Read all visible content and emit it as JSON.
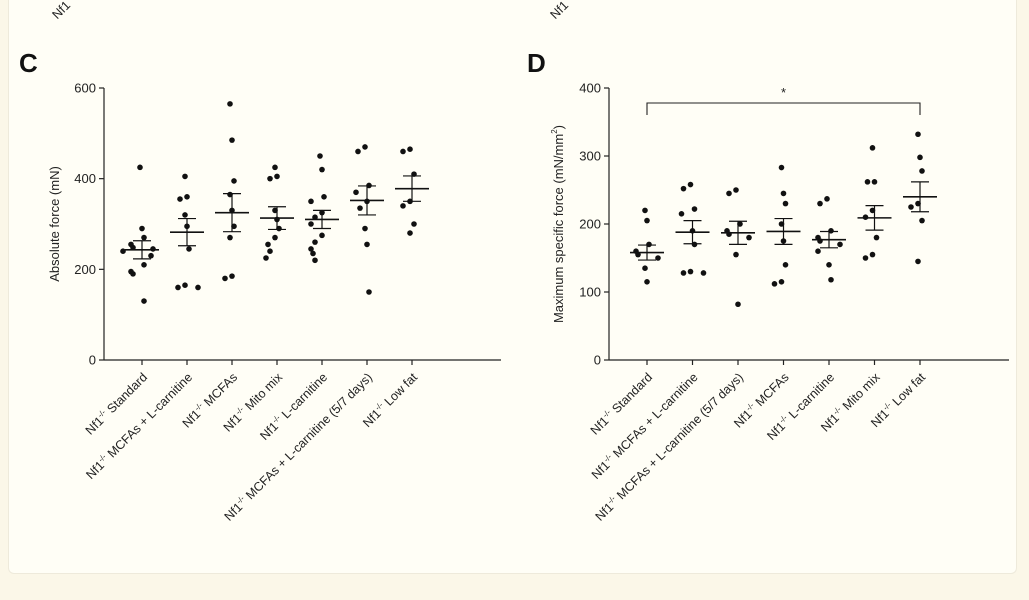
{
  "top_fragments": [
    "Nf1",
    "Nf1"
  ],
  "chart_data": [
    {
      "type": "scatter",
      "panel": "C",
      "ylabel": "Absolute force (mN)",
      "ylim": [
        0,
        600
      ],
      "yticks": [
        0,
        200,
        400,
        600
      ],
      "categories": [
        {
          "prefix": "Nf1",
          "sup": "-/-",
          "suffix": " Standard"
        },
        {
          "prefix": "Nf1",
          "sup": "-/-",
          "suffix": " MCFAs + L-carnitine"
        },
        {
          "prefix": "Nf1",
          "sup": "-/-",
          "suffix": " MCFAs"
        },
        {
          "prefix": "Nf1",
          "sup": "-/-",
          "suffix": " Mito mix"
        },
        {
          "prefix": "Nf1",
          "sup": "-/-",
          "suffix": " L-carnitine"
        },
        {
          "prefix": "Nf1",
          "sup": "-/-",
          "suffix": " MCFAs + L-carnitine (5/7 days)"
        },
        {
          "prefix": "Nf1",
          "sup": "-/-",
          "suffix": " Low fat"
        }
      ],
      "groups": [
        {
          "points": [
            425,
            290,
            270,
            255,
            248,
            245,
            240,
            230,
            210,
            195,
            190,
            130
          ],
          "mean": 243,
          "sem": 20
        },
        {
          "points": [
            405,
            360,
            355,
            320,
            295,
            245,
            165,
            160,
            160
          ],
          "mean": 282,
          "sem": 30
        },
        {
          "points": [
            565,
            485,
            395,
            365,
            330,
            295,
            270,
            185,
            180
          ],
          "mean": 325,
          "sem": 42
        },
        {
          "points": [
            425,
            405,
            400,
            330,
            310,
            290,
            270,
            255,
            240,
            225
          ],
          "mean": 313,
          "sem": 25
        },
        {
          "points": [
            450,
            420,
            360,
            350,
            325,
            315,
            300,
            275,
            260,
            245,
            235,
            220
          ],
          "mean": 310,
          "sem": 20
        },
        {
          "points": [
            470,
            460,
            385,
            370,
            350,
            335,
            290,
            255,
            150
          ],
          "mean": 352,
          "sem": 32
        },
        {
          "points": [
            465,
            460,
            410,
            350,
            340,
            300,
            280
          ],
          "mean": 378,
          "sem": 28
        }
      ]
    },
    {
      "type": "scatter",
      "panel": "D",
      "ylabel": "Maximum specific force (mN/mm",
      "ylabel_sup": "2",
      "ylabel_end": ")",
      "ylim": [
        0,
        400
      ],
      "yticks": [
        0,
        100,
        200,
        300,
        400
      ],
      "significance": "*",
      "categories": [
        {
          "prefix": "Nf1",
          "sup": "-/-",
          "suffix": " Standard"
        },
        {
          "prefix": "Nf1",
          "sup": "-/-",
          "suffix": " MCFAs + L-carnitine"
        },
        {
          "prefix": "Nf1",
          "sup": "-/-",
          "suffix": " MCFAs + L-carnitine (5/7 days)"
        },
        {
          "prefix": "Nf1",
          "sup": "-/-",
          "suffix": " MCFAs"
        },
        {
          "prefix": "Nf1",
          "sup": "-/-",
          "suffix": " L-carnitine"
        },
        {
          "prefix": "Nf1",
          "sup": "-/-",
          "suffix": " Mito mix"
        },
        {
          "prefix": "Nf1",
          "sup": "-/-",
          "suffix": " Low fat"
        }
      ],
      "groups": [
        {
          "points": [
            220,
            205,
            170,
            160,
            155,
            150,
            135,
            115
          ],
          "mean": 158,
          "sem": 11
        },
        {
          "points": [
            258,
            252,
            222,
            215,
            190,
            170,
            130,
            128,
            128
          ],
          "mean": 188,
          "sem": 17
        },
        {
          "points": [
            250,
            245,
            200,
            190,
            185,
            180,
            155,
            82
          ],
          "mean": 187,
          "sem": 17
        },
        {
          "points": [
            283,
            245,
            230,
            200,
            175,
            140,
            115,
            112
          ],
          "mean": 189,
          "sem": 19
        },
        {
          "points": [
            237,
            230,
            190,
            180,
            175,
            170,
            160,
            140,
            118
          ],
          "mean": 177,
          "sem": 12
        },
        {
          "points": [
            312,
            262,
            262,
            220,
            210,
            180,
            155,
            150
          ],
          "mean": 209,
          "sem": 18
        },
        {
          "points": [
            332,
            298,
            278,
            230,
            225,
            205,
            145
          ],
          "mean": 240,
          "sem": 22
        }
      ]
    }
  ]
}
